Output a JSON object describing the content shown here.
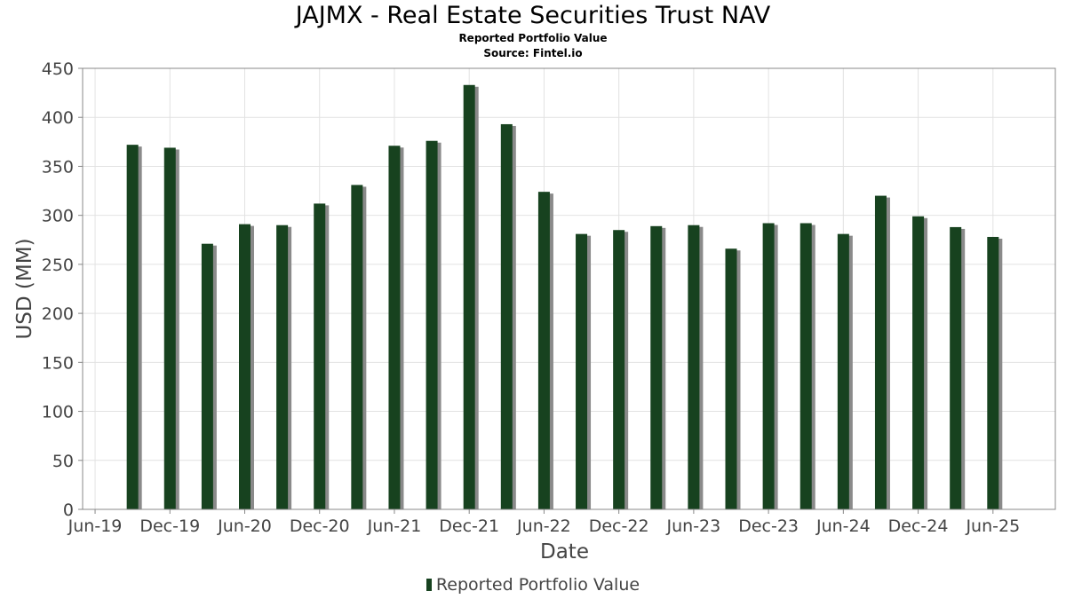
{
  "chart_data": {
    "type": "bar",
    "title": "JAJMX - Real Estate Securities Trust NAV",
    "subtitle": "Reported Portfolio Value",
    "source": "Source: Fintel.io",
    "xlabel": "Date",
    "ylabel": "USD (MM)",
    "ylim": [
      0,
      450
    ],
    "yticks": [
      0,
      50,
      100,
      150,
      200,
      250,
      300,
      350,
      400,
      450
    ],
    "xticks": [
      "Jun-19",
      "Dec-19",
      "Jun-20",
      "Dec-20",
      "Jun-21",
      "Dec-21",
      "Jun-22",
      "Dec-22",
      "Jun-23",
      "Dec-23",
      "Jun-24",
      "Dec-24",
      "Jun-25"
    ],
    "xtick_dates": [
      "2019-06",
      "2019-12",
      "2020-06",
      "2020-12",
      "2021-06",
      "2021-12",
      "2022-06",
      "2022-12",
      "2023-06",
      "2023-12",
      "2024-06",
      "2024-12",
      "2025-06"
    ],
    "xrange": [
      "2019-05",
      "2025-11"
    ],
    "grid": true,
    "legend_position": "bottom-center",
    "series": [
      {
        "name": "Reported Portfolio Value",
        "color": "#17421f",
        "shadow_color": "#8a8a8a",
        "dates": [
          "2019-09",
          "2019-12",
          "2020-03",
          "2020-06",
          "2020-09",
          "2020-12",
          "2021-03",
          "2021-06",
          "2021-09",
          "2021-12",
          "2022-03",
          "2022-06",
          "2022-09",
          "2022-12",
          "2023-03",
          "2023-06",
          "2023-09",
          "2023-12",
          "2024-03",
          "2024-06",
          "2024-09",
          "2024-12",
          "2025-03",
          "2025-06"
        ],
        "values": [
          372,
          369,
          271,
          291,
          290,
          312,
          331,
          371,
          376,
          433,
          393,
          324,
          281,
          285,
          289,
          290,
          266,
          292,
          292,
          281,
          320,
          299,
          288,
          278
        ]
      }
    ]
  }
}
